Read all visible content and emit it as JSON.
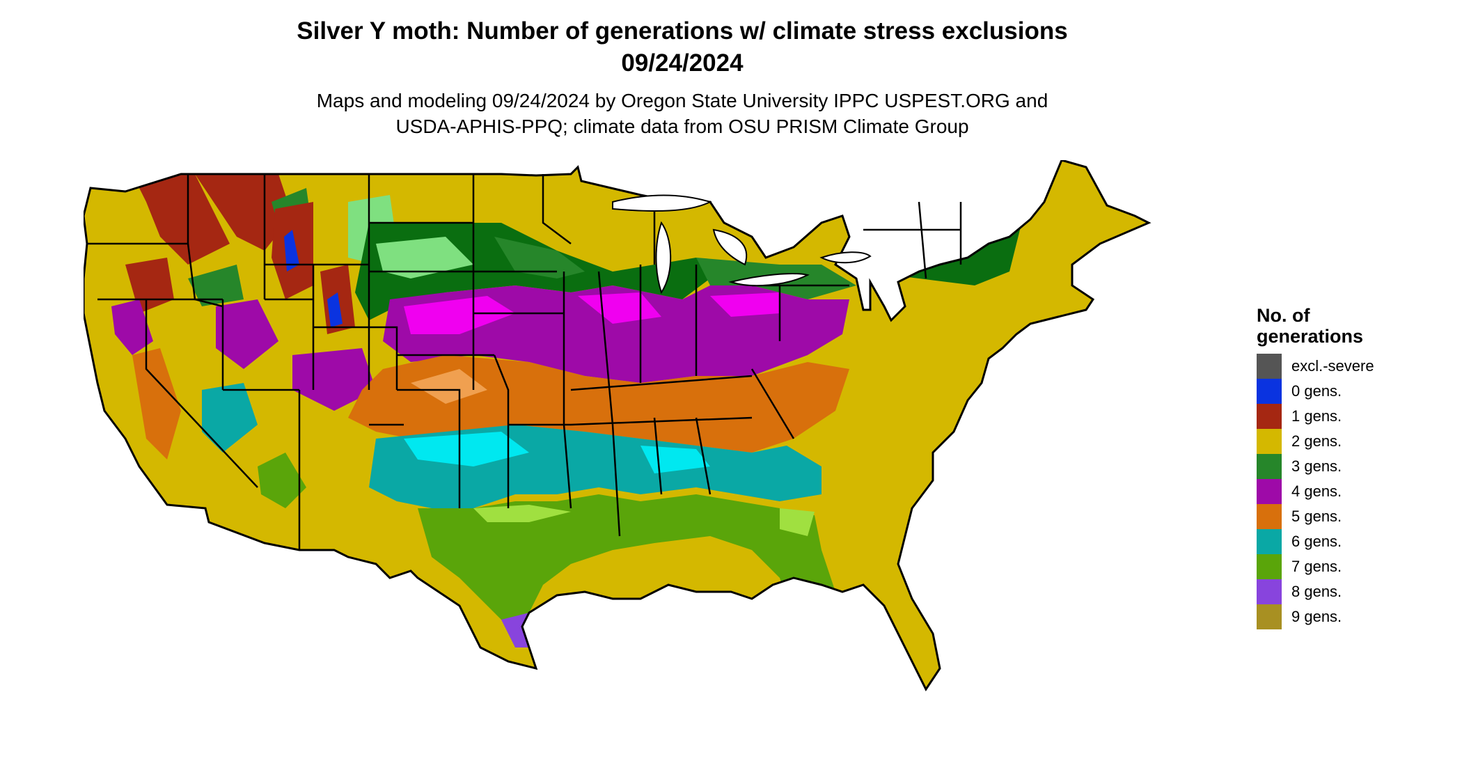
{
  "title": {
    "line1": "Silver Y moth: Number of generations w/ climate stress exclusions",
    "line2": "09/24/2024"
  },
  "subtitle": {
    "line1": "Maps and modeling 09/24/2024 by Oregon State University IPPC USPEST.ORG and",
    "line2": "USDA-APHIS-PPQ; climate data from OSU PRISM Climate Group"
  },
  "legend": {
    "title_line1": "No. of",
    "title_line2": "generations",
    "items": [
      {
        "label": "excl.-severe",
        "color": "#555555"
      },
      {
        "label": "0 gens.",
        "color": "#0a33e0"
      },
      {
        "label": "1 gens.",
        "color": "#a52712"
      },
      {
        "label": "2 gens.",
        "color": "#d4b800"
      },
      {
        "label": "3 gens.",
        "color": "#26862a"
      },
      {
        "label": "4 gens.",
        "color": "#9e0aa8"
      },
      {
        "label": "5 gens.",
        "color": "#d8700c"
      },
      {
        "label": "6 gens.",
        "color": "#0aa8a5"
      },
      {
        "label": "7 gens.",
        "color": "#5aa50a"
      },
      {
        "label": "8 gens.",
        "color": "#8844dd"
      },
      {
        "label": "9 gens.",
        "color": "#a89022"
      }
    ]
  },
  "map": {
    "region": "Contiguous United States",
    "highlight_colors": {
      "light_green": "#7fe080",
      "magenta": "#f000f0",
      "cyan": "#00e8f0",
      "light_orange": "#f0a050",
      "lime": "#a0e040",
      "dark_green": "#0a6e10"
    }
  }
}
